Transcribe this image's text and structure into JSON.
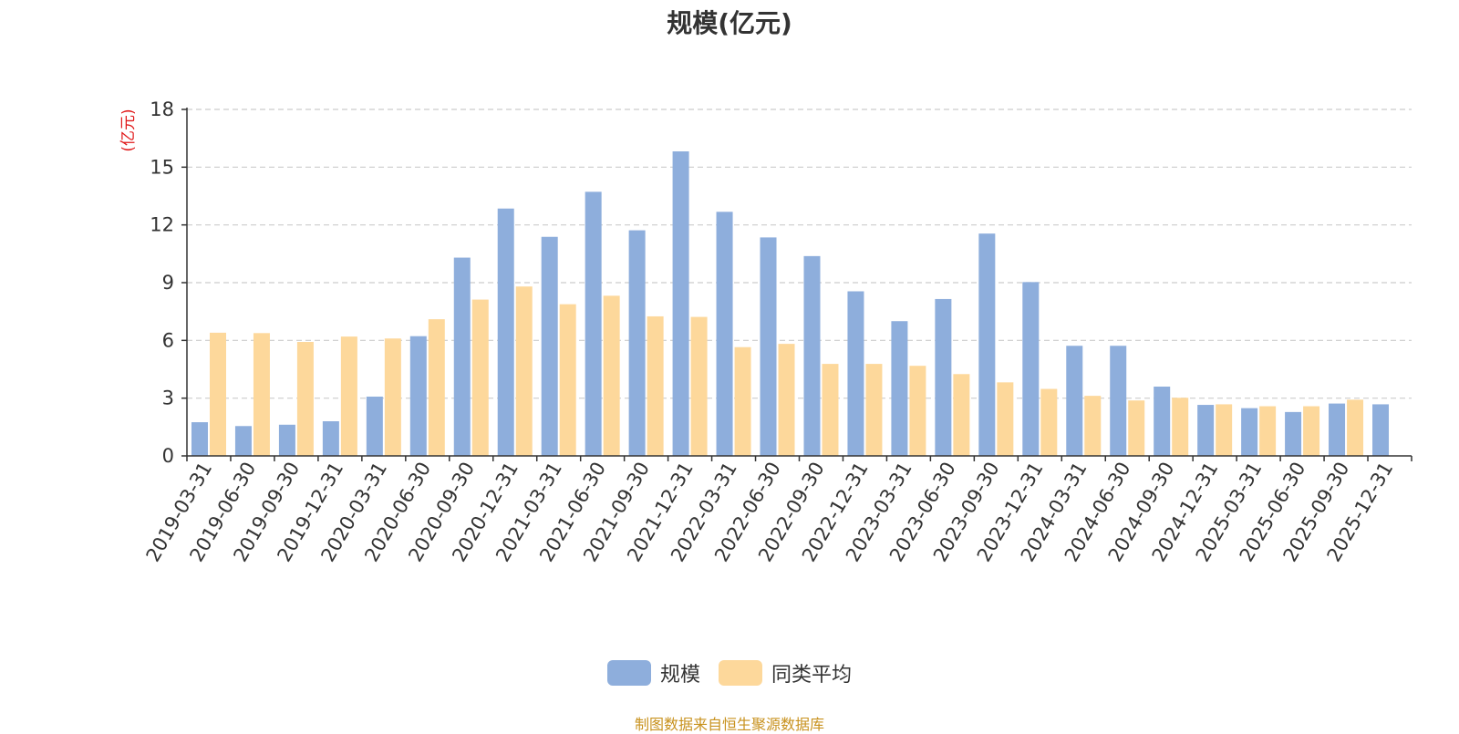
{
  "source_note": "制图数据来自恒生聚源数据库",
  "colors": {
    "series1": "#8eaedc",
    "series2": "#fdd89b",
    "axis_unit": "#e0191a",
    "grid": "#cccccc",
    "axis": "#333333",
    "source": "#c8921e"
  },
  "chart_data": {
    "type": "bar",
    "title": "规模(亿元)",
    "ylabel": "(亿元)",
    "xlabel": "",
    "ylim": [
      0,
      18
    ],
    "yticks": [
      0,
      3,
      6,
      9,
      12,
      15,
      18
    ],
    "grid": true,
    "legend_position": "bottom-center",
    "categories": [
      "2019-03-31",
      "2019-06-30",
      "2019-09-30",
      "2019-12-31",
      "2020-03-31",
      "2020-06-30",
      "2020-09-30",
      "2020-12-31",
      "2021-03-31",
      "2021-06-30",
      "2021-09-30",
      "2021-12-31",
      "2022-03-31",
      "2022-06-30",
      "2022-09-30",
      "2022-12-31",
      "2023-03-31",
      "2023-06-30",
      "2023-09-30",
      "2023-12-31",
      "2024-03-31",
      "2024-06-30",
      "2024-09-30",
      "2024-12-31",
      "2025-03-31",
      "2025-06-30",
      "2025-09-30",
      "2025-12-31"
    ],
    "series": [
      {
        "name": "规模",
        "color": "#8eaedc",
        "values": [
          1.75,
          1.55,
          1.62,
          1.8,
          3.08,
          6.22,
          10.3,
          12.85,
          11.38,
          13.72,
          11.72,
          15.82,
          12.68,
          11.35,
          10.38,
          8.55,
          7.0,
          8.15,
          11.55,
          9.03,
          5.72,
          5.72,
          3.6,
          2.65,
          2.48,
          2.28,
          2.72,
          2.68
        ]
      },
      {
        "name": "同类平均",
        "color": "#fdd89b",
        "values": [
          6.4,
          6.38,
          5.92,
          6.2,
          6.1,
          7.1,
          8.12,
          8.8,
          7.88,
          8.32,
          7.25,
          7.22,
          5.65,
          5.82,
          4.78,
          4.78,
          4.68,
          4.25,
          3.82,
          3.48,
          3.12,
          2.88,
          3.02,
          2.68,
          2.58,
          2.58,
          2.92,
          null
        ]
      }
    ]
  }
}
